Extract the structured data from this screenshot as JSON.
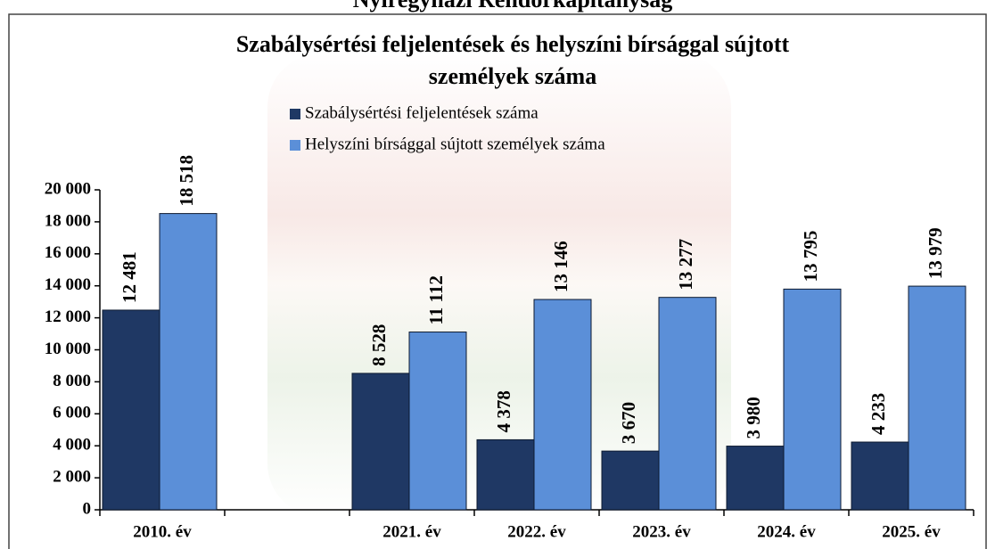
{
  "chart_data": {
    "type": "bar",
    "supertitle": "Nyíregyházi Rendőrkapitányság",
    "title": [
      "Szabálysértési feljelentések és helyszíni bírsággal sújtott",
      "személyek száma"
    ],
    "categories": [
      "2010. év",
      null,
      "2021. év",
      "2022. év",
      "2023. év",
      "2024. év",
      "2025. év"
    ],
    "series": [
      {
        "name": "Szabálysértési feljelentések száma",
        "color": "#1f3864",
        "values": [
          12481,
          null,
          8528,
          4378,
          3670,
          3980,
          4233
        ],
        "value_labels": [
          "12 481",
          null,
          "8 528",
          "4 378",
          "3 670",
          "3 980",
          "4 233"
        ]
      },
      {
        "name": "Helyszíni bírsággal sújtott személyek száma",
        "color": "#5b8fd8",
        "values": [
          18518,
          null,
          11112,
          13146,
          13277,
          13795,
          13979
        ],
        "value_labels": [
          "18 518",
          null,
          "11 112",
          "13 146",
          "13 277",
          "13 795",
          "13 979"
        ]
      }
    ],
    "ylim": [
      0,
      20000
    ],
    "yticks": [
      0,
      {
        "value": 2000,
        "label": "2 000"
      },
      {
        "value": 4000,
        "label": "4 000"
      },
      {
        "value": 6000,
        "label": "6 000"
      },
      {
        "value": 8000,
        "label": "8 000"
      },
      {
        "value": 10000,
        "label": "10 000"
      },
      {
        "value": 12000,
        "label": "12 000"
      },
      {
        "value": 14000,
        "label": "14 000"
      },
      {
        "value": 16000,
        "label": "16 000"
      },
      {
        "value": 18000,
        "label": "18 000"
      },
      {
        "value": 20000,
        "label": "20 000"
      }
    ],
    "grid": false,
    "legend": "top"
  }
}
